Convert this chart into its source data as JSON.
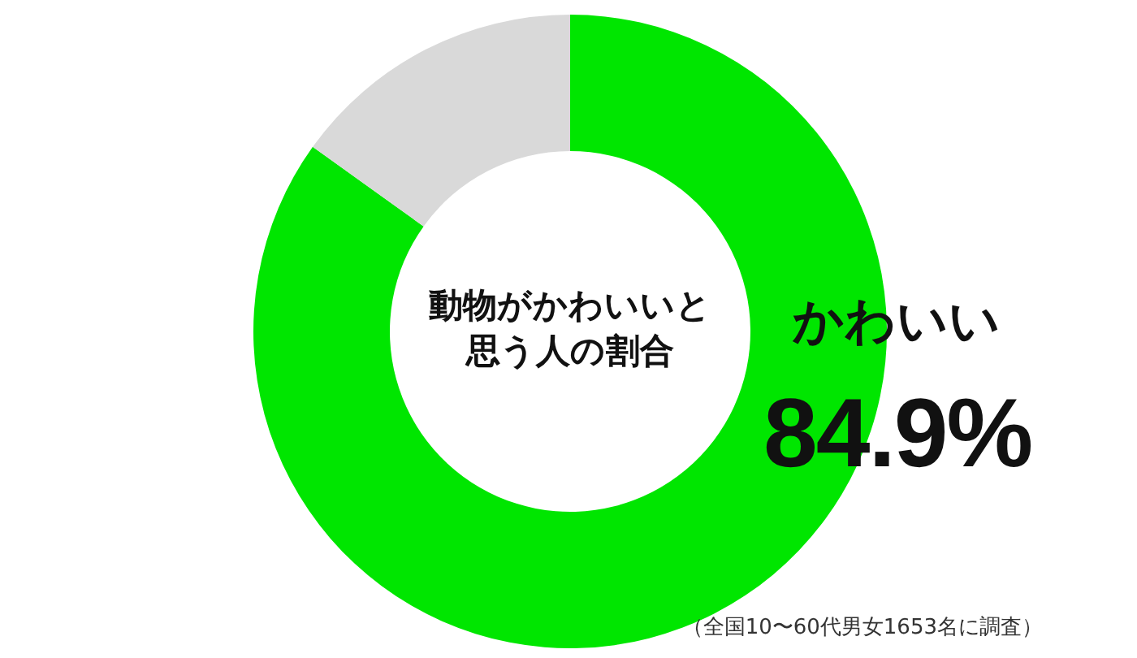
{
  "chart_data": {
    "type": "donut",
    "title": "動物がかわいいと思う人の割合",
    "categories": [
      "かわいい",
      null
    ],
    "values": [
      84.9,
      15.1
    ],
    "colors": [
      "#00e600",
      "#d9d9d9"
    ],
    "value_labels": [
      "84.9%",
      null
    ],
    "annotations": [
      "（全国10〜60代男女1653名に調査）"
    ]
  }
}
